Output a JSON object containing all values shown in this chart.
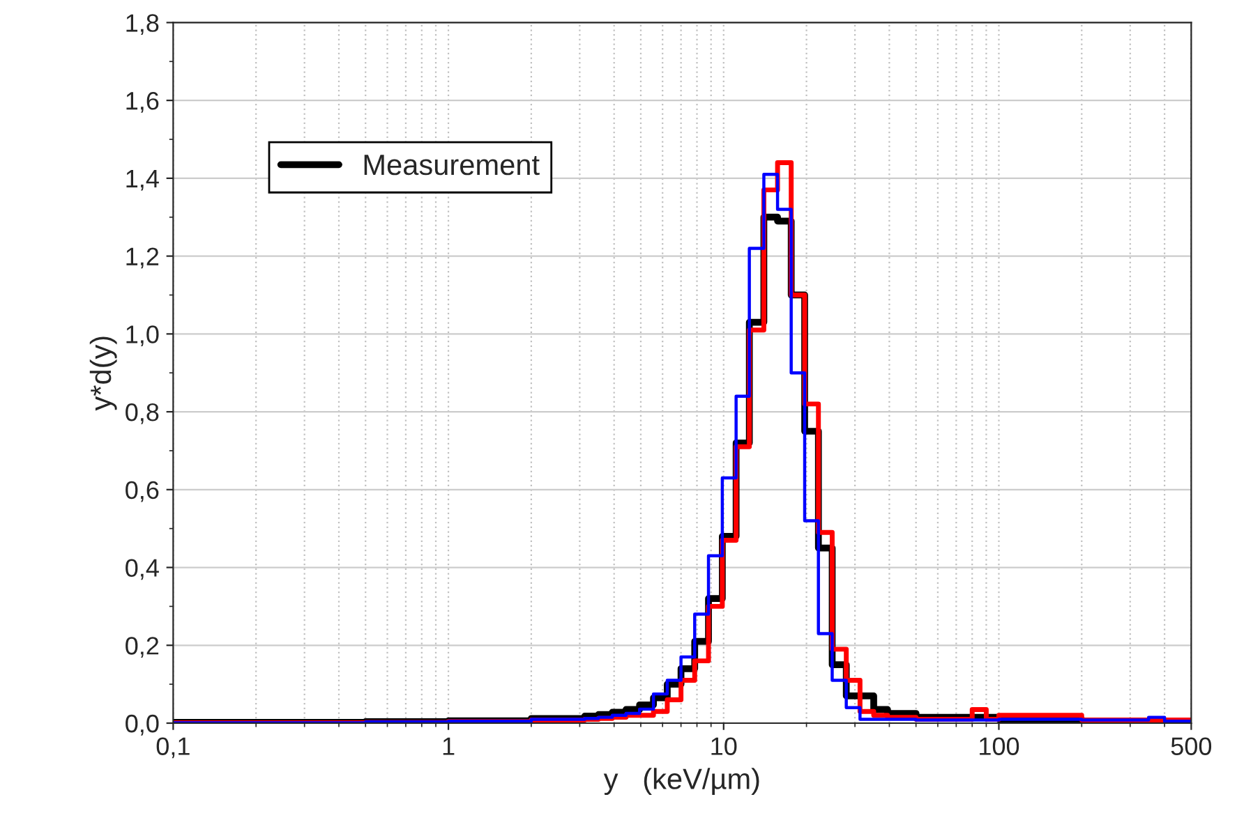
{
  "chart_data": {
    "type": "step",
    "xlabel": "y   (keV/µm)",
    "ylabel": "y*d(y)",
    "log": "x",
    "grid": true,
    "legend": "top left",
    "xlim": [
      0.1,
      500
    ],
    "xticks": [
      {
        "value": 0.1,
        "label": "0,1"
      },
      1,
      10,
      100,
      500
    ],
    "ylim": [
      0,
      1.8
    ],
    "yticks": [
      {
        "value": 0,
        "label": "0,0"
      },
      {
        "value": 0.2,
        "label": "0,2"
      },
      {
        "value": 0.4,
        "label": "0,4"
      },
      {
        "value": 0.6,
        "label": "0,6"
      },
      {
        "value": 0.8,
        "label": "0,8"
      },
      {
        "value": 1.0,
        "label": "1,0"
      },
      {
        "value": 1.2,
        "label": "1,2"
      },
      {
        "value": 1.4,
        "label": "1,4"
      },
      {
        "value": 1.6,
        "label": "1,6"
      },
      {
        "value": 1.8,
        "label": "1,8"
      }
    ],
    "series": [
      {
        "name": "Measurement",
        "color": "#000000",
        "x": [
          0.1,
          0.5,
          1,
          2,
          3.13,
          3.51,
          3.94,
          4.42,
          4.95,
          5.56,
          6.24,
          7.0,
          7.85,
          8.81,
          9.89,
          11.1,
          12.4,
          14.0,
          15.7,
          17.6,
          19.7,
          22.1,
          24.8,
          27.9,
          31.3,
          35.1,
          39.4,
          50,
          100,
          200,
          500
        ],
        "values": [
          0.002,
          0.004,
          0.006,
          0.012,
          0.018,
          0.022,
          0.028,
          0.035,
          0.047,
          0.065,
          0.1,
          0.14,
          0.21,
          0.32,
          0.48,
          0.72,
          1.03,
          1.3,
          1.29,
          1.1,
          0.75,
          0.45,
          0.15,
          0.07,
          0.07,
          0.035,
          0.025,
          0.015,
          0.01,
          0.005,
          0.005
        ]
      },
      {
        "color": "#ff0000",
        "x": [
          0.1,
          0.5,
          1,
          2,
          3.13,
          3.51,
          3.94,
          4.42,
          4.95,
          5.56,
          6.24,
          7.0,
          7.85,
          8.81,
          9.89,
          11.1,
          12.4,
          14.0,
          15.7,
          17.6,
          19.7,
          22.1,
          24.8,
          27.9,
          31.3,
          35.1,
          39.4,
          50,
          80,
          90,
          100,
          200,
          500
        ],
        "values": [
          0.001,
          0.002,
          0.004,
          0.008,
          0.01,
          0.012,
          0.015,
          0.02,
          0.02,
          0.03,
          0.06,
          0.11,
          0.16,
          0.3,
          0.47,
          0.71,
          1.01,
          1.37,
          1.44,
          1.1,
          0.82,
          0.49,
          0.19,
          0.11,
          0.03,
          0.02,
          0.015,
          0.01,
          0.035,
          0.01,
          0.02,
          0.008,
          0.008
        ]
      },
      {
        "color": "#0000ff",
        "x": [
          0.1,
          0.5,
          1,
          2,
          3.13,
          3.51,
          3.94,
          4.42,
          4.95,
          5.56,
          6.24,
          7.0,
          7.85,
          8.81,
          9.89,
          11.1,
          12.4,
          14.0,
          15.7,
          17.6,
          19.7,
          22.1,
          24.8,
          27.9,
          31.3,
          35.1,
          50,
          100,
          200,
          350,
          400,
          500
        ],
        "values": [
          0.001,
          0.003,
          0.005,
          0.01,
          0.012,
          0.015,
          0.02,
          0.025,
          0.036,
          0.075,
          0.11,
          0.17,
          0.28,
          0.43,
          0.63,
          0.84,
          1.22,
          1.41,
          1.32,
          0.9,
          0.52,
          0.23,
          0.11,
          0.04,
          0.01,
          0.01,
          0.008,
          0.01,
          0.008,
          0.015,
          0.005,
          0.005
        ]
      }
    ]
  }
}
